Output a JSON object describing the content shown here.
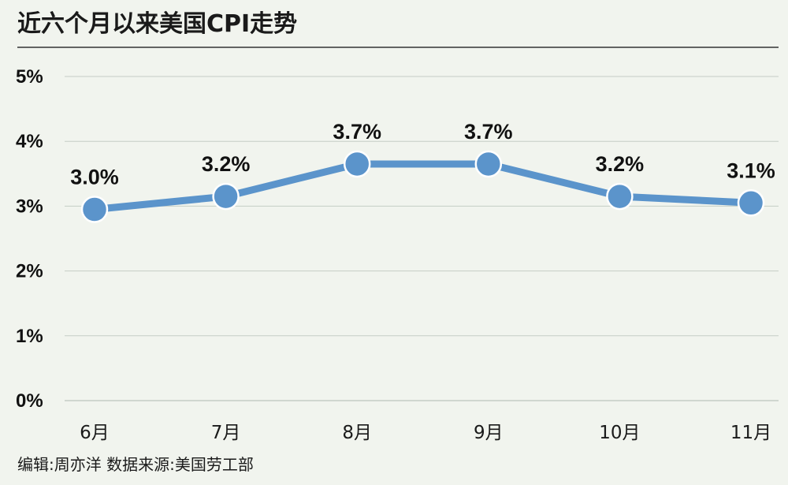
{
  "chart_data": {
    "type": "line",
    "title": "近六个月以来美国CPI走势",
    "categories": [
      "6月",
      "7月",
      "8月",
      "9月",
      "10月",
      "11月"
    ],
    "series": [
      {
        "values": [
          3.0,
          3.2,
          3.7,
          3.7,
          3.2,
          3.1
        ],
        "plot_values": [
          2.95,
          3.15,
          3.65,
          3.65,
          3.15,
          3.05
        ],
        "labels": [
          "3.0%",
          "3.2%",
          "3.7%",
          "3.7%",
          "3.2%",
          "3.1%"
        ]
      }
    ],
    "yticks": [
      "0%",
      "1%",
      "2%",
      "3%",
      "4%",
      "5%"
    ],
    "ylim": [
      0,
      5
    ],
    "grid": true,
    "colors": {
      "background": "#f1f4ee",
      "line": "#5b94cb",
      "grid": "#c5cdc5",
      "title_rule": "#333333"
    }
  },
  "footer": {
    "credit": "编辑:周亦洋   数据来源:美国劳工部"
  }
}
